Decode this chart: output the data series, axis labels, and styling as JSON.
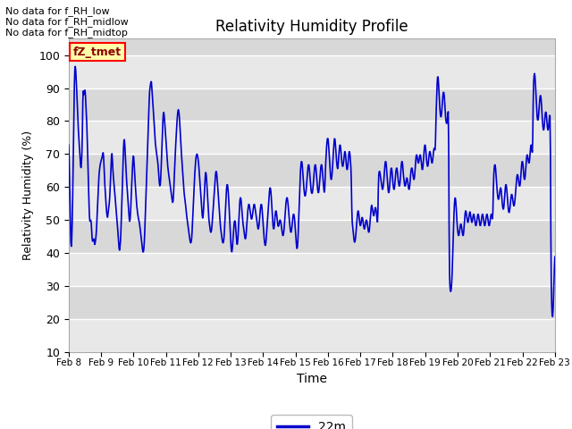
{
  "title": "Relativity Humidity Profile",
  "xlabel": "Time",
  "ylabel": "Relativity Humidity (%)",
  "ylim": [
    10,
    105
  ],
  "yticks": [
    10,
    20,
    30,
    40,
    50,
    60,
    70,
    80,
    90,
    100
  ],
  "line_color": "#0000CC",
  "line_width": 1.2,
  "legend_label": "22m",
  "legend_color": "#0000CC",
  "no_data_texts": [
    "No data for f_RH_low",
    "No data for f_RH_midlow",
    "No data for f_RH_midtop"
  ],
  "fz_tmet_label": "fZ_tmet",
  "background_color": "#ffffff",
  "plot_bg_light": "#e8e8e8",
  "plot_bg_dark": "#d8d8d8",
  "grid_color": "#ffffff",
  "x_start": 8.0,
  "x_end": 23.0,
  "xtick_positions": [
    8,
    9,
    10,
    11,
    12,
    13,
    14,
    15,
    16,
    17,
    18,
    19,
    20,
    21,
    22,
    23
  ],
  "xtick_labels": [
    "Feb 8",
    "Feb 9",
    "Feb 10",
    "Feb 11",
    "Feb 12",
    "Feb 13",
    "Feb 14",
    "Feb 15",
    "Feb 16",
    "Feb 17",
    "Feb 18",
    "Feb 19",
    "Feb 20",
    "Feb 21",
    "Feb 22",
    "Feb 23"
  ],
  "humidity_data": [
    74,
    70,
    62,
    55,
    47,
    42,
    41,
    43,
    48,
    55,
    65,
    75,
    85,
    92,
    97,
    97,
    96,
    93,
    90,
    87,
    83,
    80,
    77,
    75,
    73,
    71,
    68,
    66,
    65,
    67,
    70,
    73,
    90,
    90,
    88,
    87,
    90,
    90,
    88,
    85,
    82,
    80,
    75,
    70,
    65,
    60,
    55,
    50,
    49,
    50,
    50,
    50,
    47,
    44,
    43,
    44,
    44,
    45,
    43,
    42,
    43,
    44,
    45,
    47,
    50,
    53,
    56,
    59,
    62,
    65,
    65,
    67,
    67,
    68,
    68,
    69,
    69,
    70,
    71,
    70,
    66,
    63,
    60,
    58,
    56,
    54,
    52,
    51,
    50,
    52,
    53,
    54,
    55,
    57,
    60,
    63,
    67,
    71,
    71,
    68,
    65,
    63,
    62,
    60,
    59,
    57,
    55,
    54,
    52,
    50,
    49,
    47,
    45,
    43,
    41,
    40,
    42,
    43,
    45,
    50,
    54,
    58,
    63,
    68,
    72,
    75,
    75,
    73,
    70,
    67,
    64,
    62,
    60,
    58,
    56,
    54,
    52,
    50,
    49,
    50,
    52,
    55,
    59,
    62,
    65,
    68,
    70,
    70,
    67,
    65,
    62,
    60,
    58,
    56,
    54,
    53,
    52,
    51,
    50,
    50,
    49,
    48,
    47,
    46,
    44,
    43,
    42,
    41,
    40,
    40,
    41,
    43,
    46,
    50,
    54,
    58,
    62,
    66,
    70,
    74,
    78,
    82,
    86,
    90,
    90,
    91,
    92,
    93,
    90,
    88,
    86,
    84,
    82,
    80,
    78,
    75,
    73,
    72,
    71,
    70,
    69,
    68,
    67,
    65,
    63,
    61,
    60,
    60,
    62,
    65,
    69,
    73,
    77,
    80,
    83,
    83,
    82,
    80,
    78,
    76,
    74,
    72,
    70,
    68,
    66,
    65,
    64,
    63,
    62,
    61,
    60,
    59,
    58,
    57,
    56,
    55,
    55,
    57,
    60,
    64,
    67,
    70,
    73,
    75,
    78,
    80,
    82,
    83,
    84,
    83,
    82,
    80,
    77,
    75,
    72,
    70,
    68,
    66,
    64,
    62,
    60,
    58,
    57,
    56,
    55,
    54,
    52,
    51,
    50,
    49,
    48,
    47,
    46,
    45,
    44,
    43,
    43,
    43,
    44,
    46,
    49,
    52,
    55,
    58,
    61,
    64,
    66,
    68,
    69,
    70,
    70,
    70,
    69,
    68,
    67,
    65,
    63,
    61,
    59,
    57,
    55,
    53,
    51,
    50,
    51,
    53,
    56,
    59,
    62,
    64,
    65,
    64,
    62,
    60,
    57,
    55,
    52,
    50,
    49,
    48,
    47,
    46,
    46,
    47,
    48,
    50,
    52,
    54,
    56,
    58,
    60,
    62,
    64,
    65,
    65,
    64,
    62,
    60,
    58,
    56,
    54,
    52,
    50,
    48,
    47,
    46,
    45,
    44,
    43,
    43,
    43,
    44,
    46,
    49,
    52,
    55,
    58,
    60,
    61,
    61,
    60,
    58,
    56,
    53,
    50,
    47,
    44,
    42,
    40,
    40,
    41,
    43,
    45,
    47,
    49,
    50,
    50,
    49,
    47,
    45,
    43,
    42,
    43,
    45,
    48,
    51,
    54,
    56,
    57,
    57,
    56,
    54,
    52,
    50,
    49,
    48,
    47,
    46,
    45,
    44,
    44,
    45,
    47,
    49,
    51,
    53,
    54,
    55,
    55,
    54,
    53,
    52,
    51,
    50,
    50,
    51,
    52,
    53,
    54,
    55,
    55,
    54,
    53,
    52,
    51,
    50,
    49,
    48,
    47,
    47,
    48,
    49,
    51,
    53,
    54,
    55,
    55,
    54,
    52,
    50,
    48,
    46,
    44,
    43,
    42,
    42,
    43,
    45,
    47,
    49,
    51,
    53,
    55,
    57,
    59,
    60,
    60,
    59,
    57,
    55,
    52,
    50,
    48,
    47,
    47,
    48,
    50,
    52,
    53,
    53,
    52,
    51,
    49,
    48,
    48,
    48,
    49,
    50,
    50,
    50,
    49,
    48,
    47,
    46,
    45,
    45,
    46,
    47,
    49,
    51,
    53,
    55,
    56,
    57,
    57,
    56,
    55,
    53,
    51,
    50,
    48,
    47,
    46,
    46,
    47,
    48,
    50,
    51,
    52,
    52,
    51,
    50,
    48,
    46,
    44,
    42,
    41,
    41,
    43,
    46,
    50,
    54,
    58,
    62,
    65,
    67,
    68,
    68,
    67,
    65,
    63,
    61,
    59,
    58,
    57,
    57,
    58,
    59,
    61,
    63,
    65,
    66,
    67,
    67,
    66,
    64,
    62,
    60,
    59,
    58,
    58,
    58,
    59,
    61,
    63,
    65,
    66,
    67,
    67,
    66,
    64,
    62,
    60,
    59,
    58,
    58,
    59,
    61,
    63,
    65,
    66,
    67,
    67,
    66,
    64,
    62,
    60,
    59,
    58,
    58,
    64,
    67,
    70,
    72,
    74,
    75,
    75,
    74,
    72,
    70,
    67,
    65,
    63,
    62,
    62,
    63,
    65,
    67,
    70,
    72,
    74,
    75,
    75,
    73,
    71,
    69,
    67,
    66,
    65,
    66,
    68,
    70,
    72,
    73,
    73,
    72,
    70,
    68,
    67,
    66,
    66,
    67,
    68,
    70,
    71,
    71,
    70,
    68,
    66,
    65,
    65,
    66,
    68,
    70,
    71,
    71,
    70,
    68,
    66,
    65,
    50,
    49,
    48,
    47,
    45,
    44,
    43,
    43,
    44,
    45,
    47,
    49,
    51,
    52,
    53,
    53,
    52,
    50,
    49,
    48,
    48,
    49,
    50,
    51,
    51,
    50,
    49,
    48,
    47,
    47,
    48,
    49,
    50,
    50,
    50,
    49,
    48,
    47,
    46,
    46,
    47,
    49,
    51,
    53,
    54,
    55,
    54,
    53,
    52,
    51,
    51,
    52,
    53,
    54,
    54,
    53,
    52,
    50,
    49,
    48,
    63,
    64,
    65,
    65,
    64,
    63,
    62,
    61,
    60,
    59,
    59,
    60,
    61,
    63,
    65,
    67,
    68,
    68,
    67,
    65,
    63,
    61,
    59,
    58,
    58,
    59,
    61,
    63,
    65,
    66,
    66,
    65,
    63,
    61,
    60,
    59,
    59,
    60,
    62,
    64,
    65,
    66,
    66,
    65,
    63,
    62,
    61,
    60,
    60,
    61,
    63,
    65,
    67,
    68,
    68,
    67,
    65,
    63,
    62,
    61,
    60,
    60,
    61,
    62,
    63,
    63,
    62,
    61,
    60,
    59,
    59,
    60,
    62,
    64,
    65,
    66,
    66,
    65,
    64,
    63,
    62,
    62,
    63,
    65,
    67,
    69,
    70,
    70,
    69,
    68,
    67,
    67,
    68,
    69,
    70,
    70,
    69,
    68,
    66,
    65,
    65,
    66,
    68,
    70,
    72,
    73,
    73,
    72,
    70,
    68,
    67,
    66,
    66,
    67,
    69,
    70,
    71,
    71,
    70,
    69,
    68,
    67,
    67,
    68,
    70,
    71,
    72,
    72,
    71,
    70,
    80,
    84,
    88,
    92,
    94,
    94,
    92,
    89,
    86,
    84,
    82,
    81,
    81,
    82,
    84,
    86,
    88,
    89,
    89,
    88,
    86,
    83,
    81,
    80,
    79,
    79,
    80,
    82,
    84,
    86,
    36,
    32,
    29,
    28,
    28,
    29,
    31,
    34,
    38,
    43,
    48,
    52,
    55,
    57,
    57,
    56,
    54,
    51,
    49,
    47,
    46,
    45,
    45,
    46,
    47,
    48,
    49,
    49,
    48,
    47,
    46,
    45,
    45,
    46,
    48,
    50,
    52,
    53,
    53,
    52,
    51,
    50,
    49,
    49,
    50,
    51,
    52,
    53,
    52,
    51,
    50,
    49,
    49,
    50,
    51,
    52,
    52,
    51,
    50,
    49,
    48,
    48,
    49,
    50,
    51,
    52,
    52,
    51,
    50,
    49,
    48,
    48,
    49,
    50,
    51,
    52,
    52,
    51,
    50,
    49,
    48,
    48,
    49,
    50,
    51,
    52,
    52,
    51,
    50,
    49,
    48,
    48,
    49,
    50,
    51,
    52,
    52,
    51,
    50,
    49,
    62,
    64,
    66,
    67,
    67,
    66,
    64,
    62,
    60,
    58,
    57,
    56,
    56,
    57,
    58,
    59,
    60,
    60,
    59,
    57,
    55,
    54,
    53,
    53,
    54,
    56,
    58,
    60,
    61,
    61,
    60,
    58,
    56,
    54,
    53,
    52,
    52,
    53,
    54,
    56,
    57,
    58,
    58,
    57,
    56,
    55,
    54,
    54,
    55,
    56,
    58,
    60,
    62,
    63,
    64,
    64,
    63,
    62,
    61,
    60,
    60,
    61,
    63,
    65,
    67,
    68,
    68,
    67,
    65,
    63,
    62,
    62,
    63,
    65,
    67,
    69,
    70,
    70,
    69,
    68,
    67,
    67,
    68,
    70,
    72,
    73,
    73,
    72,
    70,
    68,
    90,
    92,
    94,
    95,
    94,
    92,
    89,
    86,
    83,
    81,
    80,
    80,
    81,
    83,
    85,
    87,
    88,
    88,
    87,
    85,
    82,
    80,
    78,
    77,
    77,
    78,
    80,
    82,
    83,
    83,
    82,
    80,
    78,
    77,
    77,
    78,
    80,
    82,
    83,
    83,
    35,
    29,
    23,
    20,
    20,
    22,
    26,
    31,
    36,
    40
  ]
}
